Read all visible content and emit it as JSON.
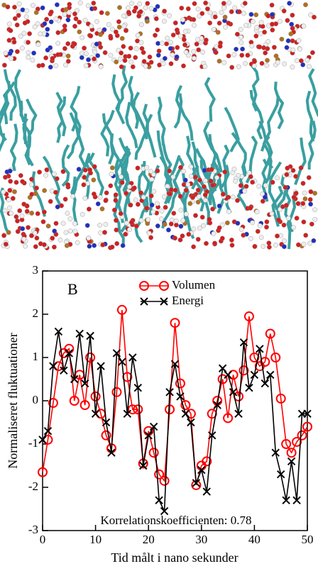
{
  "chart_data": {
    "type": "line",
    "panel_label": "B",
    "annotation": "Korrelationskoefficienten: 0.78",
    "x_label": "Tid målt i nano sekunder",
    "y_label": "Normaliseret fluktuationer",
    "xlim": [
      0,
      50
    ],
    "xticks": [
      0,
      10,
      20,
      30,
      40,
      50
    ],
    "ylim": [
      -3,
      3
    ],
    "yticks": [
      -3,
      -2,
      -1,
      0,
      1,
      2,
      3
    ],
    "x": [
      0,
      1,
      2,
      3,
      4,
      5,
      6,
      7,
      8,
      9,
      10,
      11,
      12,
      13,
      14,
      15,
      16,
      17,
      18,
      19,
      20,
      21,
      22,
      23,
      24,
      25,
      26,
      27,
      28,
      29,
      30,
      31,
      32,
      33,
      34,
      35,
      36,
      37,
      38,
      39,
      40,
      41,
      42,
      43,
      44,
      45,
      46,
      47,
      48,
      49,
      50
    ],
    "series": [
      {
        "name": "Volumen",
        "color": "#ff0000",
        "marker": "circle",
        "values": [
          -1.65,
          -0.9,
          -0.05,
          0.8,
          1.1,
          1.2,
          0.0,
          0.6,
          -0.1,
          1.0,
          0.1,
          -0.3,
          -0.8,
          -1.1,
          0.2,
          2.1,
          0.55,
          -0.2,
          -0.2,
          -1.45,
          -0.7,
          -1.2,
          -1.7,
          -1.85,
          -0.2,
          1.8,
          0.4,
          -0.1,
          -0.3,
          -1.95,
          -1.5,
          -1.4,
          -0.3,
          0.0,
          0.5,
          -0.4,
          0.6,
          0.1,
          0.7,
          1.95,
          1.0,
          0.8,
          0.9,
          1.55,
          1.0,
          0.05,
          -1.0,
          -1.2,
          -0.95,
          -0.8,
          -0.6
        ]
      },
      {
        "name": "Energi",
        "color": "#000000",
        "marker": "x",
        "values": [
          -0.9,
          -0.7,
          0.8,
          1.6,
          0.7,
          1.1,
          0.5,
          1.55,
          0.4,
          1.5,
          -0.3,
          0.8,
          -0.5,
          -1.2,
          1.1,
          0.9,
          -0.3,
          1.0,
          0.3,
          -1.5,
          -0.8,
          -0.6,
          -2.3,
          -2.55,
          0.2,
          0.85,
          0.1,
          -0.3,
          -0.5,
          -1.9,
          -1.6,
          -2.1,
          -0.8,
          -0.1,
          0.75,
          0.6,
          0.2,
          -0.3,
          1.35,
          0.3,
          0.6,
          1.2,
          0.4,
          0.6,
          -1.2,
          -1.7,
          -2.3,
          -1.4,
          -2.3,
          -0.3,
          -0.3
        ]
      }
    ]
  }
}
